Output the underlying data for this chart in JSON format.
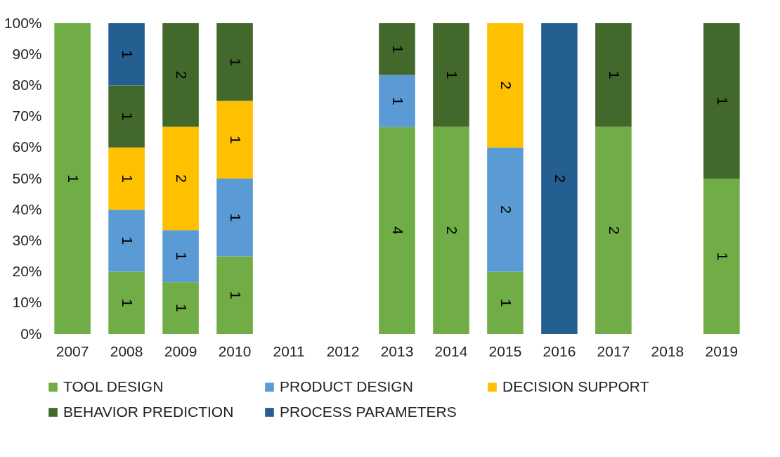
{
  "chart_data": {
    "type": "bar",
    "stacked": true,
    "categories": [
      "2007",
      "2008",
      "2009",
      "2010",
      "2011",
      "2012",
      "2013",
      "2014",
      "2015",
      "2016",
      "2017",
      "2018",
      "2019"
    ],
    "ylim": [
      0,
      100
    ],
    "yticks": [
      {
        "value": 0,
        "label": "0%"
      },
      {
        "value": 10,
        "label": "10%"
      },
      {
        "value": 20,
        "label": "20%"
      },
      {
        "value": 30,
        "label": "30%"
      },
      {
        "value": 40,
        "label": "40%"
      },
      {
        "value": 50,
        "label": "50%"
      },
      {
        "value": 60,
        "label": "60%"
      },
      {
        "value": 70,
        "label": "70%"
      },
      {
        "value": 80,
        "label": "80%"
      },
      {
        "value": 90,
        "label": "90%"
      },
      {
        "value": 100,
        "label": "100%"
      }
    ],
    "grid": false,
    "legend": "bottom",
    "series": [
      {
        "name": "TOOL DESIGN",
        "color": "#70ad47",
        "values": [
          100,
          20,
          16.7,
          25,
          null,
          null,
          66.6,
          66.7,
          20,
          null,
          66.7,
          null,
          50
        ]
      },
      {
        "name": "PRODUCT DESIGN",
        "color": "#5b9bd5",
        "values": [
          null,
          20,
          16.7,
          25,
          null,
          null,
          16.7,
          null,
          40,
          null,
          null,
          null,
          null
        ]
      },
      {
        "name": "DECISION SUPPORT",
        "color": "#ffc000",
        "values": [
          null,
          20,
          33.3,
          25,
          null,
          null,
          null,
          null,
          40,
          null,
          null,
          null,
          null
        ]
      },
      {
        "name": "BEHAVIOR PREDICTION",
        "color": "#43682b",
        "values": [
          null,
          20,
          33.3,
          25,
          null,
          null,
          16.7,
          33.3,
          null,
          null,
          33.3,
          null,
          50
        ]
      },
      {
        "name": "PROCESS PARAMETERS",
        "color": "#255e91",
        "values": [
          null,
          20,
          null,
          null,
          null,
          null,
          null,
          null,
          null,
          100,
          null,
          null,
          null
        ]
      }
    ],
    "annotations": [
      "1",
      "1",
      "1",
      "1",
      "1",
      "1",
      "1",
      "1",
      "2",
      "2",
      "1",
      "1",
      "1",
      "1",
      "4",
      "1",
      "1",
      "2",
      "1",
      "1",
      "2",
      "2",
      "2",
      "2",
      "1",
      "1",
      "1"
    ]
  }
}
